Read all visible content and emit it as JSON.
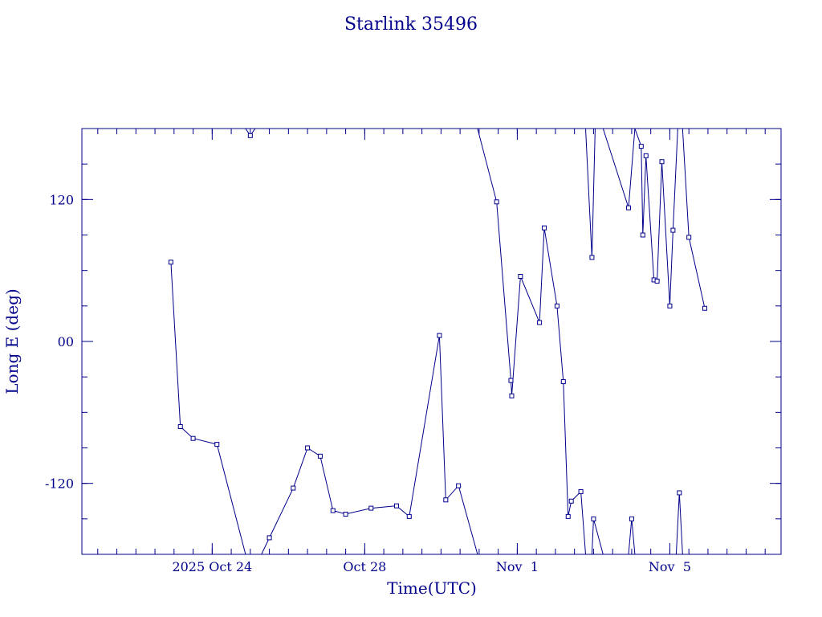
{
  "chart_data": {
    "type": "line",
    "title": "Starlink 35496",
    "xlabel": "Time(UTC)",
    "ylabel": "Long E (deg)",
    "xlim": [
      "2025-10-20T14:00",
      "2025-11-07T22:00"
    ],
    "ylim": [
      -180,
      180
    ],
    "x_ticks": [
      {
        "x": "2025-10-24T00:00",
        "label": "2025 Oct 24"
      },
      {
        "x": "2025-10-28T00:00",
        "label": "Oct 28"
      },
      {
        "x": "2025-11-01T00:00",
        "label": "Nov  1"
      },
      {
        "x": "2025-11-05T00:00",
        "label": "Nov  5"
      }
    ],
    "y_ticks": [
      {
        "y": 120,
        "label": "120"
      },
      {
        "y": 0,
        "label": "00"
      },
      {
        "y": -120,
        "label": "-120"
      }
    ],
    "y_minor_step": 30,
    "x_minor_step_hours": 12,
    "line_color": "#00008b",
    "marker": "open-square",
    "series": [
      {
        "segments": [
          [
            [
              "2025-10-22T22:00",
              67
            ],
            [
              "2025-10-23T04:00",
              -72
            ],
            [
              "2025-10-23T12:00",
              -82
            ],
            [
              "2025-10-24T03:00",
              -87
            ],
            [
              "2025-10-24T21:00",
              -180
            ]
          ],
          [
            [
              "2025-10-24T21:00",
              180
            ],
            [
              "2025-10-25T00:00",
              174
            ],
            [
              "2025-10-25T03:00",
              180
            ]
          ],
          [
            [
              "2025-10-25T07:00",
              -180
            ],
            [
              "2025-10-25T12:00",
              -166
            ],
            [
              "2025-10-26T03:00",
              -124
            ],
            [
              "2025-10-26T12:00",
              -90
            ],
            [
              "2025-10-26T20:00",
              -97
            ],
            [
              "2025-10-27T04:00",
              -143
            ],
            [
              "2025-10-27T12:00",
              -146
            ],
            [
              "2025-10-28T04:00",
              -141
            ],
            [
              "2025-10-28T20:00",
              -139
            ],
            [
              "2025-10-29T04:00",
              -148
            ],
            [
              "2025-10-29T23:00",
              5
            ],
            [
              "2025-10-30T03:00",
              -134
            ],
            [
              "2025-10-30T11:00",
              -122
            ],
            [
              "2025-10-30T23:00",
              -180
            ]
          ],
          [
            [
              "2025-10-30T23:00",
              180
            ],
            [
              "2025-10-31T11:00",
              118
            ],
            [
              "2025-10-31T20:00",
              -33
            ],
            [
              "2025-10-31T20:30",
              -46
            ],
            [
              "2025-11-01T02:00",
              55
            ],
            [
              "2025-11-01T14:00",
              16
            ],
            [
              "2025-11-01T17:00",
              96
            ],
            [
              "2025-11-02T01:00",
              30
            ],
            [
              "2025-11-02T05:00",
              -34
            ],
            [
              "2025-11-02T08:00",
              -148
            ],
            [
              "2025-11-02T10:00",
              -135
            ],
            [
              "2025-11-02T16:00",
              -127
            ],
            [
              "2025-11-02T19:00",
              -180
            ]
          ],
          [
            [
              "2025-11-02T19:00",
              180
            ],
            [
              "2025-11-02T23:00",
              71
            ],
            [
              "2025-11-03T01:00",
              180
            ]
          ],
          [
            [
              "2025-11-02T23:00",
              -180
            ],
            [
              "2025-11-03T00:00",
              -150
            ],
            [
              "2025-11-03T06:00",
              -180
            ]
          ],
          [
            [
              "2025-11-03T06:00",
              180
            ],
            [
              "2025-11-03T22:00",
              113
            ],
            [
              "2025-11-04T02:00",
              180
            ]
          ],
          [
            [
              "2025-11-03T22:00",
              -180
            ],
            [
              "2025-11-04T00:00",
              -150
            ],
            [
              "2025-11-04T02:00",
              -180
            ]
          ],
          [
            [
              "2025-11-04T02:00",
              180
            ],
            [
              "2025-11-04T06:00",
              165
            ],
            [
              "2025-11-04T07:00",
              90
            ],
            [
              "2025-11-04T09:00",
              157
            ],
            [
              "2025-11-04T14:00",
              52
            ],
            [
              "2025-11-04T16:00",
              51
            ],
            [
              "2025-11-04T19:00",
              152
            ],
            [
              "2025-11-05T00:00",
              30
            ],
            [
              "2025-11-05T02:00",
              94
            ],
            [
              "2025-11-05T05:00",
              180
            ]
          ],
          [
            [
              "2025-11-05T04:00",
              -180
            ],
            [
              "2025-11-05T06:00",
              -128
            ],
            [
              "2025-11-05T08:00",
              -180
            ]
          ],
          [
            [
              "2025-11-05T08:00",
              180
            ],
            [
              "2025-11-05T12:00",
              88
            ],
            [
              "2025-11-05T22:00",
              28
            ]
          ]
        ]
      }
    ]
  }
}
